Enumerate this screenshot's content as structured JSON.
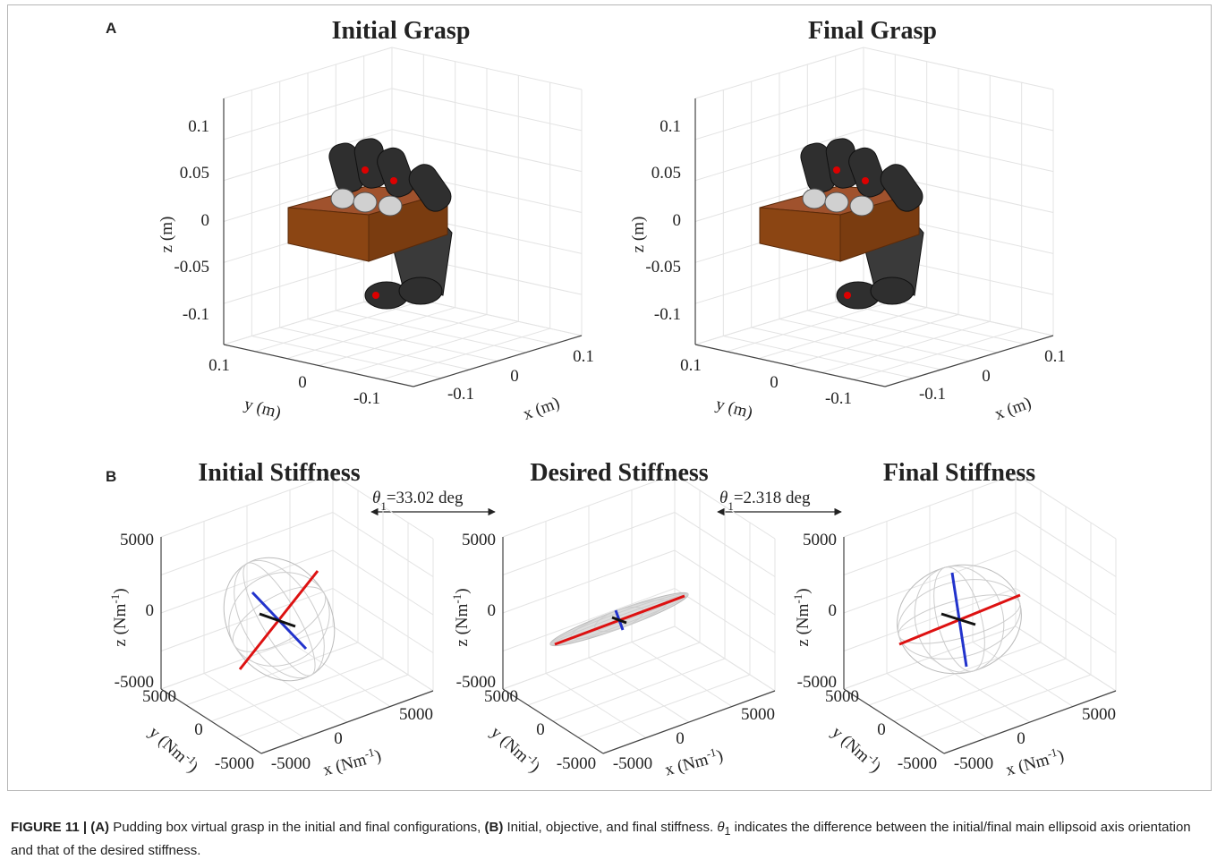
{
  "panel_a": {
    "label": "A",
    "plots": [
      {
        "title": "Initial Grasp",
        "zlabel": "z (m)",
        "ylabel": "y (m)",
        "xlabel": "x (m)",
        "zticks": [
          "0.1",
          "0.05",
          "0",
          "-0.05",
          "-0.1"
        ],
        "yticks": [
          "0.1",
          "0",
          "-0.1"
        ],
        "xticks": [
          "-0.1",
          "0",
          "0.1"
        ]
      },
      {
        "title": "Final Grasp",
        "zlabel": "z (m)",
        "ylabel": "y (m)",
        "xlabel": "x (m)",
        "zticks": [
          "0.1",
          "0.05",
          "0",
          "-0.05",
          "-0.1"
        ],
        "yticks": [
          "0.1",
          "0",
          "-0.1"
        ],
        "xticks": [
          "-0.1",
          "0",
          "0.1"
        ]
      }
    ]
  },
  "panel_b": {
    "label": "B",
    "plots": [
      {
        "title": "Initial Stiffness",
        "zlabel": {
          "text": "z (Nm",
          "sup": "-1",
          "end": ")"
        },
        "ylabel": {
          "text": "y (Nm",
          "sup": "-1",
          "end": ")"
        },
        "xlabel": {
          "text": "x (Nm",
          "sup": "-1",
          "end": ")"
        },
        "zticks": [
          "5000",
          "0",
          "-5000"
        ],
        "yticks": [
          "5000",
          "0",
          "-5000"
        ],
        "xticks": [
          "-5000",
          "0",
          "5000"
        ]
      },
      {
        "title": "Desired Stiffness",
        "zlabel": {
          "text": "z (Nm",
          "sup": "-1",
          "end": ")"
        },
        "ylabel": {
          "text": "y (Nm",
          "sup": "-1",
          "end": ")"
        },
        "xlabel": {
          "text": "x (Nm",
          "sup": "-1",
          "end": ")"
        },
        "zticks": [
          "5000",
          "0",
          "-5000"
        ],
        "yticks": [
          "5000",
          "0",
          "-5000"
        ],
        "xticks": [
          "-5000",
          "0",
          "5000"
        ]
      },
      {
        "title": "Final Stiffness",
        "zlabel": {
          "text": "z (Nm",
          "sup": "-1",
          "end": ")"
        },
        "ylabel": {
          "text": "y (Nm",
          "sup": "-1",
          "end": ")"
        },
        "xlabel": {
          "text": "x (Nm",
          "sup": "-1",
          "end": ")"
        },
        "zticks": [
          "5000",
          "0",
          "-5000"
        ],
        "yticks": [
          "5000",
          "0",
          "-5000"
        ],
        "xticks": [
          "-5000",
          "0",
          "5000"
        ]
      }
    ],
    "annotations": [
      {
        "symbol": "θ",
        "subscript": "1",
        "text": "=33.02 deg"
      },
      {
        "symbol": "θ",
        "subscript": "1",
        "text": "=2.318 deg"
      }
    ]
  },
  "caption": {
    "figure": "FIGURE 11 |",
    "a": "(A)",
    "text_a": "Pudding box virtual grasp in the initial and final configurations,",
    "b": "(B)",
    "text_b": "Initial, objective, and final stiffness.",
    "symbol": "θ",
    "subscript": "1",
    "text_c": "indicates the difference between the initial/final main ellipsoid axis orientation and that of the desired stiffness."
  }
}
